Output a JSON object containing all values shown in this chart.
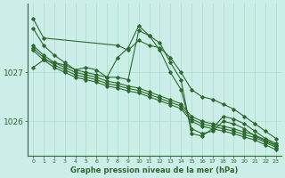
{
  "bg_color": "#cceee8",
  "grid_color": "#aaddcc",
  "line_color": "#2d6a2d",
  "xlabel": "Graphe pression niveau de la mer (hPa)",
  "xlim": [
    -0.5,
    23.5
  ],
  "ylim": [
    1025.3,
    1028.4
  ],
  "yticks": [
    1026,
    1027
  ],
  "xticks": [
    0,
    1,
    2,
    3,
    4,
    5,
    6,
    7,
    8,
    9,
    10,
    11,
    12,
    13,
    14,
    15,
    16,
    17,
    18,
    19,
    20,
    21,
    22,
    23
  ],
  "series": [
    {
      "x": [
        0,
        1,
        2,
        3,
        4,
        5,
        6,
        7,
        8,
        9,
        10,
        11,
        12,
        13,
        14,
        15,
        16,
        17,
        18,
        19,
        20,
        21,
        22,
        23
      ],
      "y": [
        1027.9,
        1027.55,
        1027.35,
        1027.2,
        1027.05,
        1027.1,
        1027.05,
        1026.9,
        1026.9,
        1026.85,
        1027.85,
        1027.75,
        1027.6,
        1027.2,
        1026.85,
        1025.75,
        1025.7,
        1025.85,
        1026.1,
        1026.05,
        1025.95,
        1025.8,
        1025.65,
        1025.55
      ]
    },
    {
      "x": [
        0,
        1,
        8,
        9,
        10,
        11,
        12,
        13,
        14,
        15,
        16,
        17,
        18,
        19,
        20,
        21,
        22,
        23
      ],
      "y": [
        1028.1,
        1027.7,
        1027.55,
        1027.45,
        1027.65,
        1027.55,
        1027.5,
        1027.3,
        1027.0,
        1026.65,
        1026.5,
        1026.45,
        1026.35,
        1026.25,
        1026.1,
        1025.95,
        1025.8,
        1025.65
      ]
    },
    {
      "x": [
        0,
        1,
        2,
        3,
        4,
        5,
        6,
        7,
        8,
        9,
        10,
        11,
        12,
        13,
        14,
        15,
        16,
        17,
        18,
        19,
        20,
        21,
        22,
        23
      ],
      "y": [
        1027.1,
        1027.25,
        1027.2,
        1027.15,
        1027.05,
        1027.0,
        1026.95,
        1026.9,
        1027.3,
        1027.5,
        1027.95,
        1027.75,
        1027.45,
        1027.0,
        1026.65,
        1025.85,
        1025.75,
        1025.8,
        1026.0,
        1025.95,
        1025.85,
        1025.7,
        1025.6,
        1025.5
      ]
    },
    {
      "x": [
        0,
        1,
        2,
        3,
        4,
        5,
        6,
        7,
        8,
        9,
        10,
        11,
        12,
        13,
        14,
        15,
        16,
        17,
        18,
        19,
        20,
        21,
        22,
        23
      ],
      "y": [
        1027.55,
        1027.35,
        1027.2,
        1027.1,
        1027.0,
        1026.95,
        1026.9,
        1026.82,
        1026.78,
        1026.72,
        1026.68,
        1026.6,
        1026.52,
        1026.44,
        1026.36,
        1026.1,
        1026.0,
        1025.95,
        1025.9,
        1025.85,
        1025.78,
        1025.72,
        1025.62,
        1025.52
      ]
    },
    {
      "x": [
        0,
        1,
        2,
        3,
        4,
        5,
        6,
        7,
        8,
        9,
        10,
        11,
        12,
        13,
        14,
        15,
        16,
        17,
        18,
        19,
        20,
        21,
        22,
        23
      ],
      "y": [
        1027.5,
        1027.3,
        1027.15,
        1027.05,
        1026.95,
        1026.9,
        1026.85,
        1026.77,
        1026.73,
        1026.67,
        1026.63,
        1026.55,
        1026.47,
        1026.39,
        1026.31,
        1026.05,
        1025.95,
        1025.9,
        1025.85,
        1025.8,
        1025.73,
        1025.67,
        1025.57,
        1025.47
      ]
    },
    {
      "x": [
        0,
        1,
        2,
        3,
        4,
        5,
        6,
        7,
        8,
        9,
        10,
        11,
        12,
        13,
        14,
        15,
        16,
        17,
        18,
        19,
        20,
        21,
        22,
        23
      ],
      "y": [
        1027.45,
        1027.25,
        1027.1,
        1027.0,
        1026.9,
        1026.85,
        1026.8,
        1026.72,
        1026.68,
        1026.62,
        1026.58,
        1026.5,
        1026.42,
        1026.34,
        1026.26,
        1026.0,
        1025.9,
        1025.85,
        1025.8,
        1025.75,
        1025.68,
        1025.62,
        1025.52,
        1025.42
      ]
    }
  ]
}
